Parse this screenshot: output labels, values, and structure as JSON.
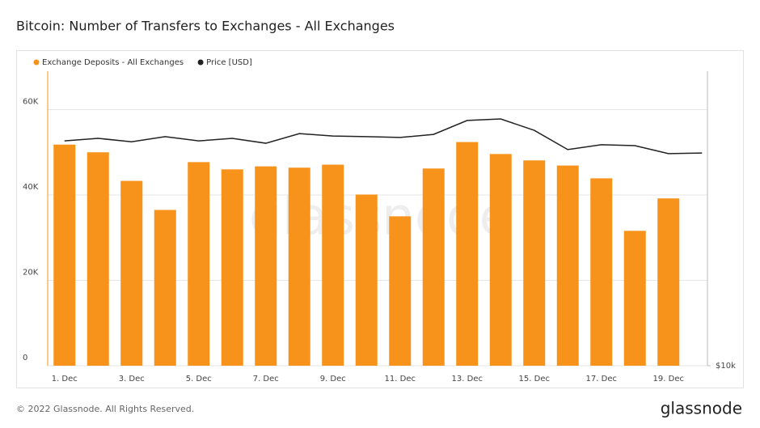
{
  "chart_data": {
    "type": "bar",
    "title": "Bitcoin: Number of Transfers to Exchanges - All Exchanges",
    "watermark": "glassnode",
    "footer": "© 2022 Glassnode. All Rights Reserved.",
    "brand": "glassnode",
    "categories": [
      "1. Dec",
      null,
      "3. Dec",
      null,
      "5. Dec",
      null,
      "7. Dec",
      null,
      "9. Dec",
      null,
      "11. Dec",
      null,
      "13. Dec",
      null,
      "15. Dec",
      null,
      "17. Dec",
      null,
      "19. Dec",
      null
    ],
    "series": [
      {
        "name": "Exchange Deposits - All Exchanges",
        "color": "#f7931a",
        "type": "bar",
        "values": [
          51800,
          50000,
          43300,
          36500,
          47700,
          46000,
          46700,
          46400,
          47100,
          40100,
          35000,
          46200,
          52400,
          49600,
          48100,
          46900,
          43900,
          31600,
          39200,
          null
        ]
      },
      {
        "name": "Price [USD]",
        "color": "#222222",
        "type": "line",
        "axis": "y2",
        "values": [
          48900,
          49800,
          48600,
          50400,
          48900,
          49800,
          48100,
          51500,
          50600,
          50400,
          50100,
          51200,
          56500,
          57100,
          52700,
          46000,
          47600,
          47300,
          44700,
          44900
        ]
      }
    ],
    "ylim": [
      0,
      69000
    ],
    "yticks": [
      {
        "value": 0,
        "label": "0"
      },
      {
        "value": 20000,
        "label": "20K"
      },
      {
        "value": 40000,
        "label": "40K"
      },
      {
        "value": 60000,
        "label": "60K"
      }
    ],
    "y2lim": [
      10000,
      80000
    ],
    "y2ticks": [
      {
        "value": 10000,
        "label": "$10k"
      }
    ],
    "y2_log": true,
    "grid": true,
    "legend": "top-left"
  }
}
